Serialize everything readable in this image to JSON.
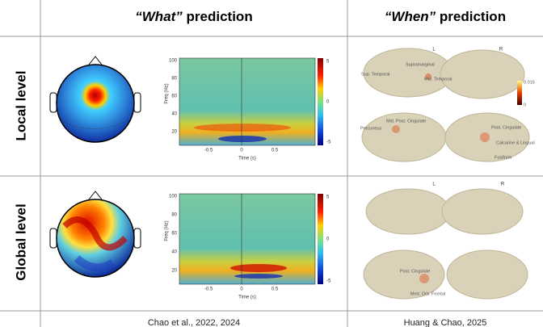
{
  "header": {
    "left": {
      "quote": "“What”",
      "rest": " prediction"
    },
    "right": {
      "quote": "“When”",
      "rest": " prediction"
    }
  },
  "rows": [
    {
      "label": "Local level"
    },
    {
      "label": "Global level"
    }
  ],
  "tf_axes": {
    "ylabel": "Freq (Hz)",
    "xlabel": "Time (s)",
    "yticks": [
      "100",
      "80",
      "60",
      "40",
      "20"
    ],
    "xticks": [
      "-0.5",
      "0",
      "0.5"
    ],
    "cbar_ticks": [
      "5",
      "0",
      "-5"
    ]
  },
  "brain": {
    "local": {
      "left": "L",
      "right": "R",
      "cbar": [
        "0.015",
        "0"
      ],
      "labels": [
        "Sup. Temporal",
        "Supramarginal",
        "Mid. Temporal",
        "Mid. Post. Cingulate",
        "Precuneus",
        "Post. Cingulate",
        "Calcarine & Lingual",
        "Fusiform"
      ]
    },
    "global": {
      "left": "L",
      "right": "R",
      "labels": [
        "Post. Cingulate",
        "Med. Orb. Frontal"
      ]
    }
  },
  "footer": {
    "left": "Chao et al., 2022, 2024",
    "right": "Huang & Chao, 2025"
  }
}
